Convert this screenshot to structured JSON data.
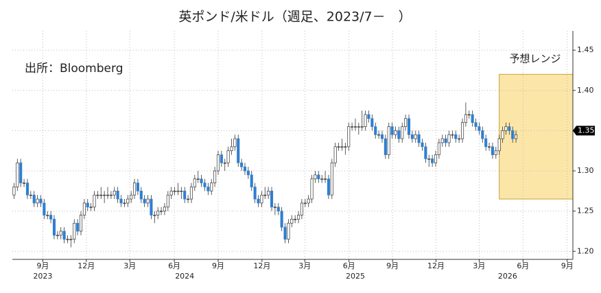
{
  "chart_data": {
    "type": "candlestick",
    "title": "英ポンド/米ドル（週足、2023/7－　）",
    "note": "出所：Bloomberg",
    "up_color": "#ffffff",
    "down_color": "#2f7fd0",
    "edge_color": "#333333",
    "grid": true,
    "ylim": [
      1.19,
      1.474
    ],
    "yticks": [
      {
        "value": 1.2,
        "label": "1.20"
      },
      1.25,
      {
        "value": 1.3,
        "label": "1.30"
      },
      1.35,
      {
        "value": 1.4,
        "label": "1.40"
      },
      1.45
    ],
    "xlim": [
      -0.5,
      167
    ],
    "xticks": [
      {
        "value": 8.6,
        "label": "9月"
      },
      {
        "value": 21.6,
        "label": "12月"
      },
      {
        "value": 34.6,
        "label": "3月"
      },
      {
        "value": 47.9,
        "label": "6月"
      },
      {
        "value": 61,
        "label": "9月"
      },
      {
        "value": 74.1,
        "label": "12月"
      },
      {
        "value": 86.9,
        "label": "3月"
      },
      {
        "value": 100.1,
        "label": "6月"
      },
      {
        "value": 113.1,
        "label": "9月"
      },
      {
        "value": 126.1,
        "label": "12月"
      },
      {
        "value": 139,
        "label": "3月"
      },
      {
        "value": 152.1,
        "label": "6月"
      },
      {
        "value": 165.3,
        "label": "9月"
      }
    ],
    "year_labels": [
      {
        "value": 8.6,
        "label": "2023"
      },
      {
        "value": 51,
        "label": "2024"
      },
      {
        "value": 102,
        "label": "2025"
      },
      {
        "value": 147.5,
        "label": "2026"
      }
    ],
    "current_price": 1.35,
    "forecast_range": {
      "label": "予想レンジ",
      "ylim": [
        1.265,
        1.42
      ],
      "xlim": [
        145,
        167
      ],
      "color": "#fbe6a8"
    },
    "ohlc": [
      [
        1.27,
        1.285,
        1.265,
        1.28
      ],
      [
        1.28,
        1.315,
        1.275,
        1.31
      ],
      [
        1.31,
        1.315,
        1.28,
        1.285
      ],
      [
        1.285,
        1.29,
        1.28,
        1.285
      ],
      [
        1.285,
        1.29,
        1.265,
        1.27
      ],
      [
        1.27,
        1.275,
        1.265,
        1.27
      ],
      [
        1.27,
        1.275,
        1.255,
        1.26
      ],
      [
        1.26,
        1.27,
        1.255,
        1.265
      ],
      [
        1.265,
        1.27,
        1.255,
        1.26
      ],
      [
        1.26,
        1.265,
        1.24,
        1.245
      ],
      [
        1.245,
        1.25,
        1.24,
        1.245
      ],
      [
        1.245,
        1.25,
        1.235,
        1.24
      ],
      [
        1.24,
        1.245,
        1.215,
        1.22
      ],
      [
        1.22,
        1.225,
        1.215,
        1.22
      ],
      [
        1.22,
        1.23,
        1.215,
        1.225
      ],
      [
        1.225,
        1.23,
        1.21,
        1.215
      ],
      [
        1.215,
        1.22,
        1.21,
        1.215
      ],
      [
        1.215,
        1.22,
        1.205,
        1.215
      ],
      [
        1.215,
        1.24,
        1.21,
        1.235
      ],
      [
        1.235,
        1.24,
        1.22,
        1.225
      ],
      [
        1.225,
        1.25,
        1.22,
        1.245
      ],
      [
        1.245,
        1.265,
        1.24,
        1.26
      ],
      [
        1.26,
        1.265,
        1.25,
        1.255
      ],
      [
        1.255,
        1.26,
        1.25,
        1.255
      ],
      [
        1.255,
        1.275,
        1.25,
        1.27
      ],
      [
        1.27,
        1.275,
        1.265,
        1.27
      ],
      [
        1.27,
        1.28,
        1.265,
        1.27
      ],
      [
        1.27,
        1.275,
        1.26,
        1.27
      ],
      [
        1.27,
        1.28,
        1.265,
        1.27
      ],
      [
        1.27,
        1.275,
        1.265,
        1.27
      ],
      [
        1.27,
        1.28,
        1.265,
        1.275
      ],
      [
        1.275,
        1.28,
        1.26,
        1.265
      ],
      [
        1.265,
        1.27,
        1.255,
        1.26
      ],
      [
        1.26,
        1.265,
        1.255,
        1.26
      ],
      [
        1.26,
        1.27,
        1.255,
        1.265
      ],
      [
        1.265,
        1.275,
        1.26,
        1.27
      ],
      [
        1.27,
        1.29,
        1.265,
        1.285
      ],
      [
        1.285,
        1.29,
        1.27,
        1.275
      ],
      [
        1.275,
        1.28,
        1.26,
        1.265
      ],
      [
        1.265,
        1.27,
        1.255,
        1.26
      ],
      [
        1.26,
        1.27,
        1.255,
        1.265
      ],
      [
        1.265,
        1.27,
        1.24,
        1.245
      ],
      [
        1.245,
        1.25,
        1.235,
        1.245
      ],
      [
        1.245,
        1.255,
        1.24,
        1.25
      ],
      [
        1.25,
        1.255,
        1.245,
        1.25
      ],
      [
        1.25,
        1.26,
        1.245,
        1.255
      ],
      [
        1.255,
        1.275,
        1.25,
        1.27
      ],
      [
        1.27,
        1.28,
        1.265,
        1.275
      ],
      [
        1.275,
        1.28,
        1.27,
        1.275
      ],
      [
        1.275,
        1.285,
        1.27,
        1.275
      ],
      [
        1.275,
        1.28,
        1.265,
        1.275
      ],
      [
        1.275,
        1.28,
        1.26,
        1.265
      ],
      [
        1.265,
        1.27,
        1.26,
        1.265
      ],
      [
        1.265,
        1.285,
        1.26,
        1.28
      ],
      [
        1.28,
        1.295,
        1.275,
        1.29
      ],
      [
        1.29,
        1.3,
        1.285,
        1.29
      ],
      [
        1.29,
        1.295,
        1.28,
        1.285
      ],
      [
        1.285,
        1.29,
        1.275,
        1.28
      ],
      [
        1.28,
        1.285,
        1.27,
        1.275
      ],
      [
        1.275,
        1.29,
        1.27,
        1.285
      ],
      [
        1.285,
        1.305,
        1.28,
        1.3
      ],
      [
        1.3,
        1.325,
        1.295,
        1.32
      ],
      [
        1.32,
        1.325,
        1.305,
        1.31
      ],
      [
        1.31,
        1.315,
        1.3,
        1.31
      ],
      [
        1.31,
        1.33,
        1.305,
        1.325
      ],
      [
        1.325,
        1.34,
        1.32,
        1.33
      ],
      [
        1.33,
        1.345,
        1.325,
        1.34
      ],
      [
        1.34,
        1.345,
        1.305,
        1.31
      ],
      [
        1.31,
        1.315,
        1.3,
        1.305
      ],
      [
        1.305,
        1.31,
        1.295,
        1.3
      ],
      [
        1.3,
        1.305,
        1.29,
        1.295
      ],
      [
        1.295,
        1.3,
        1.275,
        1.28
      ],
      [
        1.28,
        1.285,
        1.26,
        1.265
      ],
      [
        1.265,
        1.27,
        1.255,
        1.26
      ],
      [
        1.26,
        1.275,
        1.255,
        1.27
      ],
      [
        1.27,
        1.28,
        1.265,
        1.27
      ],
      [
        1.27,
        1.28,
        1.265,
        1.275
      ],
      [
        1.275,
        1.28,
        1.25,
        1.255
      ],
      [
        1.255,
        1.26,
        1.245,
        1.255
      ],
      [
        1.255,
        1.26,
        1.245,
        1.25
      ],
      [
        1.25,
        1.255,
        1.225,
        1.23
      ],
      [
        1.23,
        1.235,
        1.21,
        1.215
      ],
      [
        1.215,
        1.24,
        1.21,
        1.235
      ],
      [
        1.235,
        1.245,
        1.23,
        1.24
      ],
      [
        1.24,
        1.245,
        1.235,
        1.24
      ],
      [
        1.24,
        1.25,
        1.235,
        1.245
      ],
      [
        1.245,
        1.265,
        1.24,
        1.26
      ],
      [
        1.26,
        1.265,
        1.255,
        1.26
      ],
      [
        1.26,
        1.27,
        1.255,
        1.265
      ],
      [
        1.265,
        1.295,
        1.26,
        1.29
      ],
      [
        1.29,
        1.3,
        1.285,
        1.295
      ],
      [
        1.295,
        1.3,
        1.285,
        1.29
      ],
      [
        1.29,
        1.295,
        1.285,
        1.29
      ],
      [
        1.29,
        1.3,
        1.285,
        1.29
      ],
      [
        1.29,
        1.295,
        1.265,
        1.27
      ],
      [
        1.27,
        1.315,
        1.265,
        1.31
      ],
      [
        1.31,
        1.335,
        1.305,
        1.33
      ],
      [
        1.33,
        1.335,
        1.325,
        1.33
      ],
      [
        1.33,
        1.34,
        1.325,
        1.33
      ],
      [
        1.33,
        1.335,
        1.32,
        1.33
      ],
      [
        1.33,
        1.36,
        1.325,
        1.355
      ],
      [
        1.355,
        1.36,
        1.35,
        1.355
      ],
      [
        1.355,
        1.365,
        1.35,
        1.355
      ],
      [
        1.355,
        1.36,
        1.345,
        1.355
      ],
      [
        1.355,
        1.375,
        1.35,
        1.355
      ],
      [
        1.355,
        1.375,
        1.35,
        1.37
      ],
      [
        1.37,
        1.375,
        1.36,
        1.365
      ],
      [
        1.365,
        1.37,
        1.35,
        1.355
      ],
      [
        1.355,
        1.36,
        1.34,
        1.345
      ],
      [
        1.345,
        1.35,
        1.34,
        1.345
      ],
      [
        1.345,
        1.35,
        1.335,
        1.34
      ],
      [
        1.34,
        1.345,
        1.315,
        1.32
      ],
      [
        1.32,
        1.36,
        1.315,
        1.355
      ],
      [
        1.355,
        1.36,
        1.34,
        1.345
      ],
      [
        1.345,
        1.355,
        1.34,
        1.35
      ],
      [
        1.35,
        1.355,
        1.335,
        1.34
      ],
      [
        1.34,
        1.36,
        1.335,
        1.355
      ],
      [
        1.355,
        1.37,
        1.35,
        1.365
      ],
      [
        1.365,
        1.37,
        1.34,
        1.345
      ],
      [
        1.345,
        1.35,
        1.335,
        1.34
      ],
      [
        1.34,
        1.35,
        1.335,
        1.345
      ],
      [
        1.345,
        1.35,
        1.33,
        1.335
      ],
      [
        1.335,
        1.34,
        1.325,
        1.33
      ],
      [
        1.33,
        1.335,
        1.31,
        1.315
      ],
      [
        1.315,
        1.32,
        1.305,
        1.315
      ],
      [
        1.315,
        1.32,
        1.305,
        1.31
      ],
      [
        1.31,
        1.325,
        1.305,
        1.32
      ],
      [
        1.32,
        1.34,
        1.315,
        1.335
      ],
      [
        1.335,
        1.345,
        1.33,
        1.34
      ],
      [
        1.34,
        1.345,
        1.33,
        1.335
      ],
      [
        1.335,
        1.35,
        1.33,
        1.345
      ],
      [
        1.345,
        1.35,
        1.34,
        1.345
      ],
      [
        1.345,
        1.35,
        1.335,
        1.34
      ],
      [
        1.34,
        1.345,
        1.335,
        1.34
      ],
      [
        1.34,
        1.365,
        1.335,
        1.36
      ],
      [
        1.36,
        1.385,
        1.355,
        1.37
      ],
      [
        1.37,
        1.375,
        1.365,
        1.37
      ],
      [
        1.37,
        1.375,
        1.355,
        1.36
      ],
      [
        1.36,
        1.365,
        1.35,
        1.355
      ],
      [
        1.355,
        1.36,
        1.345,
        1.35
      ],
      [
        1.35,
        1.355,
        1.335,
        1.34
      ],
      [
        1.34,
        1.345,
        1.325,
        1.33
      ],
      [
        1.33,
        1.335,
        1.325,
        1.33
      ],
      [
        1.33,
        1.335,
        1.315,
        1.32
      ],
      [
        1.32,
        1.33,
        1.315,
        1.325
      ],
      [
        1.325,
        1.345,
        1.32,
        1.34
      ],
      [
        1.34,
        1.355,
        1.335,
        1.35
      ],
      [
        1.35,
        1.36,
        1.345,
        1.355
      ],
      [
        1.355,
        1.36,
        1.345,
        1.35
      ],
      [
        1.35,
        1.355,
        1.335,
        1.34
      ],
      [
        1.34,
        1.35,
        1.335,
        1.345
      ]
    ]
  }
}
